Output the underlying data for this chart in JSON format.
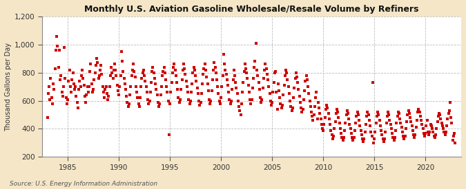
{
  "title": "Monthly U.S. Aviation Gasoline Wholesale/Resale Volume by Refiners",
  "ylabel": "Thousand Gallons per Day",
  "source": "Source: U.S. Energy Information Administration",
  "fig_background_color": "#f5e6c8",
  "plot_background_color": "#ffffff",
  "marker_color": "#cc0000",
  "ylim": [
    200,
    1200
  ],
  "yticks": [
    200,
    400,
    600,
    800,
    1000,
    1200
  ],
  "xlim_start": 1982.5,
  "xlim_end": 2023.5,
  "xticks": [
    1985,
    1990,
    1995,
    2000,
    2005,
    2010,
    2015,
    2020
  ],
  "data_points": [
    [
      1983.0,
      480
    ],
    [
      1983.08,
      650
    ],
    [
      1983.17,
      700
    ],
    [
      1983.25,
      610
    ],
    [
      1983.33,
      760
    ],
    [
      1983.42,
      620
    ],
    [
      1983.5,
      580
    ],
    [
      1983.58,
      720
    ],
    [
      1983.67,
      680
    ],
    [
      1983.75,
      830
    ],
    [
      1983.83,
      960
    ],
    [
      1983.92,
      1060
    ],
    [
      1984.0,
      990
    ],
    [
      1984.08,
      840
    ],
    [
      1984.17,
      960
    ],
    [
      1984.25,
      750
    ],
    [
      1984.33,
      780
    ],
    [
      1984.42,
      660
    ],
    [
      1984.5,
      630
    ],
    [
      1984.58,
      700
    ],
    [
      1984.67,
      980
    ],
    [
      1984.75,
      760
    ],
    [
      1984.83,
      620
    ],
    [
      1984.92,
      580
    ],
    [
      1985.0,
      610
    ],
    [
      1985.08,
      740
    ],
    [
      1985.17,
      820
    ],
    [
      1985.25,
      700
    ],
    [
      1985.33,
      660
    ],
    [
      1985.42,
      750
    ],
    [
      1985.5,
      800
    ],
    [
      1985.58,
      720
    ],
    [
      1985.67,
      680
    ],
    [
      1985.75,
      700
    ],
    [
      1985.83,
      630
    ],
    [
      1985.92,
      590
    ],
    [
      1986.0,
      550
    ],
    [
      1986.08,
      680
    ],
    [
      1986.17,
      740
    ],
    [
      1986.25,
      700
    ],
    [
      1986.33,
      780
    ],
    [
      1986.42,
      820
    ],
    [
      1986.5,
      760
    ],
    [
      1986.58,
      710
    ],
    [
      1986.67,
      630
    ],
    [
      1986.75,
      590
    ],
    [
      1986.83,
      640
    ],
    [
      1986.92,
      700
    ],
    [
      1987.0,
      660
    ],
    [
      1987.08,
      700
    ],
    [
      1987.17,
      810
    ],
    [
      1987.25,
      860
    ],
    [
      1987.33,
      720
    ],
    [
      1987.42,
      660
    ],
    [
      1987.5,
      680
    ],
    [
      1987.58,
      750
    ],
    [
      1987.67,
      800
    ],
    [
      1987.75,
      850
    ],
    [
      1987.83,
      900
    ],
    [
      1987.92,
      870
    ],
    [
      1988.0,
      760
    ],
    [
      1988.08,
      780
    ],
    [
      1988.17,
      820
    ],
    [
      1988.25,
      850
    ],
    [
      1988.33,
      790
    ],
    [
      1988.42,
      700
    ],
    [
      1988.5,
      660
    ],
    [
      1988.58,
      620
    ],
    [
      1988.67,
      680
    ],
    [
      1988.75,
      700
    ],
    [
      1988.83,
      650
    ],
    [
      1988.92,
      610
    ],
    [
      1989.0,
      630
    ],
    [
      1989.08,
      700
    ],
    [
      1989.17,
      780
    ],
    [
      1989.25,
      840
    ],
    [
      1989.33,
      800
    ],
    [
      1989.42,
      760
    ],
    [
      1989.5,
      820
    ],
    [
      1989.58,
      860
    ],
    [
      1989.67,
      820
    ],
    [
      1989.75,
      780
    ],
    [
      1989.83,
      710
    ],
    [
      1989.92,
      670
    ],
    [
      1990.0,
      640
    ],
    [
      1990.08,
      700
    ],
    [
      1990.17,
      780
    ],
    [
      1990.25,
      950
    ],
    [
      1990.33,
      880
    ],
    [
      1990.42,
      810
    ],
    [
      1990.5,
      760
    ],
    [
      1990.58,
      720
    ],
    [
      1990.67,
      680
    ],
    [
      1990.75,
      630
    ],
    [
      1990.83,
      590
    ],
    [
      1990.92,
      560
    ],
    [
      1991.0,
      580
    ],
    [
      1991.08,
      640
    ],
    [
      1991.17,
      700
    ],
    [
      1991.25,
      780
    ],
    [
      1991.33,
      820
    ],
    [
      1991.42,
      860
    ],
    [
      1991.5,
      810
    ],
    [
      1991.58,
      770
    ],
    [
      1991.67,
      700
    ],
    [
      1991.75,
      660
    ],
    [
      1991.83,
      620
    ],
    [
      1991.92,
      580
    ],
    [
      1992.0,
      560
    ],
    [
      1992.08,
      620
    ],
    [
      1992.17,
      700
    ],
    [
      1992.25,
      760
    ],
    [
      1992.33,
      800
    ],
    [
      1992.42,
      820
    ],
    [
      1992.5,
      780
    ],
    [
      1992.58,
      740
    ],
    [
      1992.67,
      700
    ],
    [
      1992.75,
      660
    ],
    [
      1992.83,
      610
    ],
    [
      1992.92,
      580
    ],
    [
      1993.0,
      600
    ],
    [
      1993.08,
      660
    ],
    [
      1993.17,
      730
    ],
    [
      1993.25,
      810
    ],
    [
      1993.33,
      840
    ],
    [
      1993.42,
      800
    ],
    [
      1993.5,
      760
    ],
    [
      1993.58,
      720
    ],
    [
      1993.67,
      680
    ],
    [
      1993.75,
      640
    ],
    [
      1993.83,
      590
    ],
    [
      1993.92,
      560
    ],
    [
      1994.0,
      580
    ],
    [
      1994.08,
      640
    ],
    [
      1994.17,
      700
    ],
    [
      1994.25,
      780
    ],
    [
      1994.33,
      810
    ],
    [
      1994.42,
      840
    ],
    [
      1994.5,
      800
    ],
    [
      1994.58,
      750
    ],
    [
      1994.67,
      700
    ],
    [
      1994.75,
      660
    ],
    [
      1994.83,
      600
    ],
    [
      1994.92,
      360
    ],
    [
      1995.0,
      580
    ],
    [
      1995.08,
      660
    ],
    [
      1995.17,
      730
    ],
    [
      1995.25,
      800
    ],
    [
      1995.33,
      840
    ],
    [
      1995.42,
      860
    ],
    [
      1995.5,
      820
    ],
    [
      1995.58,
      780
    ],
    [
      1995.67,
      730
    ],
    [
      1995.75,
      680
    ],
    [
      1995.83,
      620
    ],
    [
      1995.92,
      590
    ],
    [
      1996.0,
      610
    ],
    [
      1996.08,
      680
    ],
    [
      1996.17,
      750
    ],
    [
      1996.25,
      820
    ],
    [
      1996.33,
      860
    ],
    [
      1996.42,
      830
    ],
    [
      1996.5,
      790
    ],
    [
      1996.58,
      740
    ],
    [
      1996.67,
      700
    ],
    [
      1996.75,
      660
    ],
    [
      1996.83,
      610
    ],
    [
      1996.92,
      580
    ],
    [
      1997.0,
      600
    ],
    [
      1997.08,
      660
    ],
    [
      1997.17,
      720
    ],
    [
      1997.25,
      800
    ],
    [
      1997.33,
      840
    ],
    [
      1997.42,
      820
    ],
    [
      1997.5,
      780
    ],
    [
      1997.58,
      740
    ],
    [
      1997.67,
      690
    ],
    [
      1997.75,
      650
    ],
    [
      1997.83,
      600
    ],
    [
      1997.92,
      570
    ],
    [
      1998.0,
      590
    ],
    [
      1998.08,
      650
    ],
    [
      1998.17,
      720
    ],
    [
      1998.25,
      790
    ],
    [
      1998.33,
      830
    ],
    [
      1998.42,
      860
    ],
    [
      1998.5,
      820
    ],
    [
      1998.58,
      770
    ],
    [
      1998.67,
      720
    ],
    [
      1998.75,
      670
    ],
    [
      1998.83,
      610
    ],
    [
      1998.92,
      580
    ],
    [
      1999.0,
      600
    ],
    [
      1999.08,
      670
    ],
    [
      1999.17,
      750
    ],
    [
      1999.25,
      820
    ],
    [
      1999.33,
      870
    ],
    [
      1999.42,
      840
    ],
    [
      1999.5,
      800
    ],
    [
      1999.58,
      750
    ],
    [
      1999.67,
      700
    ],
    [
      1999.75,
      650
    ],
    [
      1999.83,
      600
    ],
    [
      1999.92,
      580
    ],
    [
      2000.0,
      620
    ],
    [
      2000.08,
      700
    ],
    [
      2000.17,
      780
    ],
    [
      2000.25,
      930
    ],
    [
      2000.33,
      860
    ],
    [
      2000.42,
      820
    ],
    [
      2000.5,
      790
    ],
    [
      2000.58,
      750
    ],
    [
      2000.67,
      710
    ],
    [
      2000.75,
      660
    ],
    [
      2000.83,
      610
    ],
    [
      2000.92,
      580
    ],
    [
      2001.0,
      600
    ],
    [
      2001.08,
      680
    ],
    [
      2001.17,
      750
    ],
    [
      2001.25,
      820
    ],
    [
      2001.33,
      780
    ],
    [
      2001.42,
      730
    ],
    [
      2001.5,
      690
    ],
    [
      2001.58,
      650
    ],
    [
      2001.67,
      600
    ],
    [
      2001.75,
      560
    ],
    [
      2001.83,
      530
    ],
    [
      2001.92,
      500
    ],
    [
      2002.0,
      580
    ],
    [
      2002.08,
      660
    ],
    [
      2002.17,
      730
    ],
    [
      2002.25,
      810
    ],
    [
      2002.33,
      860
    ],
    [
      2002.42,
      830
    ],
    [
      2002.5,
      800
    ],
    [
      2002.58,
      760
    ],
    [
      2002.67,
      710
    ],
    [
      2002.75,
      660
    ],
    [
      2002.83,
      610
    ],
    [
      2002.92,
      580
    ],
    [
      2003.0,
      610
    ],
    [
      2003.08,
      690
    ],
    [
      2003.17,
      760
    ],
    [
      2003.25,
      840
    ],
    [
      2003.33,
      880
    ],
    [
      2003.42,
      1010
    ],
    [
      2003.5,
      820
    ],
    [
      2003.58,
      780
    ],
    [
      2003.67,
      730
    ],
    [
      2003.75,
      680
    ],
    [
      2003.83,
      620
    ],
    [
      2003.92,
      590
    ],
    [
      2004.0,
      610
    ],
    [
      2004.08,
      690
    ],
    [
      2004.17,
      760
    ],
    [
      2004.25,
      820
    ],
    [
      2004.33,
      860
    ],
    [
      2004.42,
      830
    ],
    [
      2004.5,
      790
    ],
    [
      2004.58,
      750
    ],
    [
      2004.67,
      700
    ],
    [
      2004.75,
      650
    ],
    [
      2004.83,
      600
    ],
    [
      2004.92,
      570
    ],
    [
      2005.0,
      590
    ],
    [
      2005.08,
      660
    ],
    [
      2005.17,
      730
    ],
    [
      2005.25,
      800
    ],
    [
      2005.33,
      810
    ],
    [
      2005.42,
      660
    ],
    [
      2005.5,
      540
    ],
    [
      2005.58,
      720
    ],
    [
      2005.67,
      670
    ],
    [
      2005.75,
      620
    ],
    [
      2005.83,
      580
    ],
    [
      2005.92,
      550
    ],
    [
      2006.0,
      570
    ],
    [
      2006.08,
      640
    ],
    [
      2006.17,
      710
    ],
    [
      2006.25,
      780
    ],
    [
      2006.33,
      820
    ],
    [
      2006.42,
      800
    ],
    [
      2006.5,
      750
    ],
    [
      2006.58,
      700
    ],
    [
      2006.67,
      650
    ],
    [
      2006.75,
      600
    ],
    [
      2006.83,
      560
    ],
    [
      2006.92,
      530
    ],
    [
      2007.0,
      550
    ],
    [
      2007.08,
      620
    ],
    [
      2007.17,
      690
    ],
    [
      2007.25,
      760
    ],
    [
      2007.33,
      800
    ],
    [
      2007.42,
      770
    ],
    [
      2007.5,
      730
    ],
    [
      2007.58,
      680
    ],
    [
      2007.67,
      630
    ],
    [
      2007.75,
      590
    ],
    [
      2007.83,
      550
    ],
    [
      2007.92,
      520
    ],
    [
      2008.0,
      540
    ],
    [
      2008.08,
      610
    ],
    [
      2008.17,
      670
    ],
    [
      2008.25,
      740
    ],
    [
      2008.33,
      780
    ],
    [
      2008.42,
      750
    ],
    [
      2008.5,
      700
    ],
    [
      2008.58,
      650
    ],
    [
      2008.67,
      600
    ],
    [
      2008.75,
      560
    ],
    [
      2008.83,
      520
    ],
    [
      2008.92,
      490
    ],
    [
      2009.0,
      460
    ],
    [
      2009.08,
      500
    ],
    [
      2009.17,
      560
    ],
    [
      2009.25,
      620
    ],
    [
      2009.33,
      660
    ],
    [
      2009.42,
      470
    ],
    [
      2009.5,
      590
    ],
    [
      2009.58,
      550
    ],
    [
      2009.67,
      510
    ],
    [
      2009.75,
      470
    ],
    [
      2009.83,
      430
    ],
    [
      2009.92,
      400
    ],
    [
      2010.0,
      390
    ],
    [
      2010.08,
      430
    ],
    [
      2010.17,
      480
    ],
    [
      2010.25,
      540
    ],
    [
      2010.33,
      570
    ],
    [
      2010.42,
      550
    ],
    [
      2010.5,
      510
    ],
    [
      2010.58,
      470
    ],
    [
      2010.67,
      430
    ],
    [
      2010.75,
      390
    ],
    [
      2010.83,
      360
    ],
    [
      2010.92,
      330
    ],
    [
      2011.0,
      350
    ],
    [
      2011.08,
      400
    ],
    [
      2011.17,
      450
    ],
    [
      2011.25,
      510
    ],
    [
      2011.33,
      540
    ],
    [
      2011.42,
      520
    ],
    [
      2011.5,
      480
    ],
    [
      2011.58,
      440
    ],
    [
      2011.67,
      400
    ],
    [
      2011.75,
      370
    ],
    [
      2011.83,
      340
    ],
    [
      2011.92,
      320
    ],
    [
      2012.0,
      340
    ],
    [
      2012.08,
      390
    ],
    [
      2012.17,
      440
    ],
    [
      2012.25,
      500
    ],
    [
      2012.33,
      530
    ],
    [
      2012.42,
      510
    ],
    [
      2012.5,
      470
    ],
    [
      2012.58,
      430
    ],
    [
      2012.67,
      400
    ],
    [
      2012.75,
      370
    ],
    [
      2012.83,
      340
    ],
    [
      2012.92,
      320
    ],
    [
      2013.0,
      340
    ],
    [
      2013.08,
      390
    ],
    [
      2013.17,
      440
    ],
    [
      2013.25,
      490
    ],
    [
      2013.33,
      520
    ],
    [
      2013.42,
      500
    ],
    [
      2013.5,
      460
    ],
    [
      2013.58,
      420
    ],
    [
      2013.67,
      390
    ],
    [
      2013.75,
      360
    ],
    [
      2013.83,
      330
    ],
    [
      2013.92,
      310
    ],
    [
      2014.0,
      330
    ],
    [
      2014.08,
      380
    ],
    [
      2014.17,
      430
    ],
    [
      2014.25,
      490
    ],
    [
      2014.33,
      520
    ],
    [
      2014.42,
      500
    ],
    [
      2014.5,
      460
    ],
    [
      2014.58,
      420
    ],
    [
      2014.67,
      380
    ],
    [
      2014.75,
      350
    ],
    [
      2014.83,
      730
    ],
    [
      2014.92,
      300
    ],
    [
      2015.0,
      330
    ],
    [
      2015.08,
      380
    ],
    [
      2015.17,
      440
    ],
    [
      2015.25,
      490
    ],
    [
      2015.33,
      520
    ],
    [
      2015.42,
      500
    ],
    [
      2015.5,
      460
    ],
    [
      2015.58,
      420
    ],
    [
      2015.67,
      390
    ],
    [
      2015.75,
      360
    ],
    [
      2015.83,
      330
    ],
    [
      2015.92,
      310
    ],
    [
      2016.0,
      330
    ],
    [
      2016.08,
      380
    ],
    [
      2016.17,
      440
    ],
    [
      2016.25,
      490
    ],
    [
      2016.33,
      520
    ],
    [
      2016.42,
      500
    ],
    [
      2016.5,
      460
    ],
    [
      2016.58,
      430
    ],
    [
      2016.67,
      400
    ],
    [
      2016.75,
      370
    ],
    [
      2016.83,
      340
    ],
    [
      2016.92,
      320
    ],
    [
      2017.0,
      340
    ],
    [
      2017.08,
      390
    ],
    [
      2017.17,
      440
    ],
    [
      2017.25,
      490
    ],
    [
      2017.33,
      520
    ],
    [
      2017.42,
      510
    ],
    [
      2017.5,
      470
    ],
    [
      2017.58,
      440
    ],
    [
      2017.67,
      410
    ],
    [
      2017.75,
      380
    ],
    [
      2017.83,
      350
    ],
    [
      2017.92,
      330
    ],
    [
      2018.0,
      350
    ],
    [
      2018.08,
      400
    ],
    [
      2018.17,
      450
    ],
    [
      2018.25,
      500
    ],
    [
      2018.33,
      530
    ],
    [
      2018.42,
      510
    ],
    [
      2018.5,
      480
    ],
    [
      2018.58,
      450
    ],
    [
      2018.67,
      420
    ],
    [
      2018.75,
      390
    ],
    [
      2018.83,
      360
    ],
    [
      2018.92,
      340
    ],
    [
      2019.0,
      360
    ],
    [
      2019.08,
      410
    ],
    [
      2019.17,
      460
    ],
    [
      2019.25,
      520
    ],
    [
      2019.33,
      540
    ],
    [
      2019.42,
      520
    ],
    [
      2019.5,
      490
    ],
    [
      2019.58,
      460
    ],
    [
      2019.67,
      430
    ],
    [
      2019.75,
      400
    ],
    [
      2019.83,
      370
    ],
    [
      2019.92,
      350
    ],
    [
      2020.0,
      370
    ],
    [
      2020.08,
      420
    ],
    [
      2020.17,
      460
    ],
    [
      2020.25,
      380
    ],
    [
      2020.33,
      360
    ],
    [
      2020.42,
      380
    ],
    [
      2020.5,
      430
    ],
    [
      2020.58,
      420
    ],
    [
      2020.67,
      400
    ],
    [
      2020.75,
      380
    ],
    [
      2020.83,
      350
    ],
    [
      2020.92,
      340
    ],
    [
      2021.0,
      360
    ],
    [
      2021.08,
      400
    ],
    [
      2021.17,
      450
    ],
    [
      2021.25,
      490
    ],
    [
      2021.33,
      510
    ],
    [
      2021.42,
      500
    ],
    [
      2021.5,
      470
    ],
    [
      2021.58,
      440
    ],
    [
      2021.67,
      420
    ],
    [
      2021.75,
      400
    ],
    [
      2021.83,
      380
    ],
    [
      2021.92,
      360
    ],
    [
      2022.0,
      380
    ],
    [
      2022.08,
      420
    ],
    [
      2022.17,
      470
    ],
    [
      2022.25,
      510
    ],
    [
      2022.33,
      530
    ],
    [
      2022.42,
      590
    ],
    [
      2022.5,
      480
    ],
    [
      2022.58,
      440
    ],
    [
      2022.67,
      320
    ],
    [
      2022.75,
      350
    ],
    [
      2022.83,
      370
    ],
    [
      2022.92,
      300
    ]
  ]
}
